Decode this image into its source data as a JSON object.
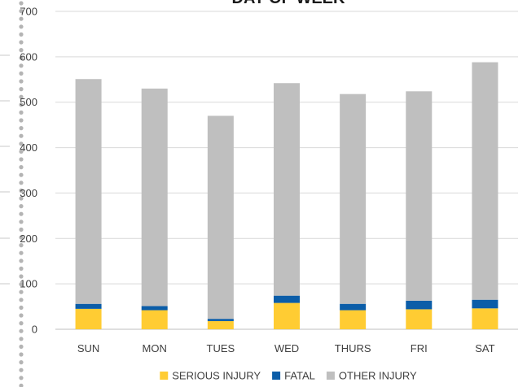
{
  "chart_data": {
    "type": "bar",
    "stacked": true,
    "title": "DAY OF WEEK",
    "categories": [
      "SUN",
      "MON",
      "TUES",
      "WED",
      "THURS",
      "FRI",
      "SAT"
    ],
    "series": [
      {
        "name": "SERIOUS INJURY",
        "color": "#FFCC33",
        "values": [
          45,
          42,
          18,
          58,
          42,
          44,
          46
        ]
      },
      {
        "name": "FATAL",
        "color": "#0B5DA8",
        "values": [
          11,
          9,
          5,
          16,
          14,
          19,
          19
        ]
      },
      {
        "name": "OTHER INJURY",
        "color": "#BFBFBF",
        "values": [
          495,
          479,
          447,
          468,
          462,
          461,
          523
        ]
      }
    ],
    "ylim": [
      0,
      700
    ],
    "yticks": [
      0,
      100,
      200,
      300,
      400,
      500,
      600,
      700
    ],
    "grid": true,
    "legend_position": "bottom"
  }
}
